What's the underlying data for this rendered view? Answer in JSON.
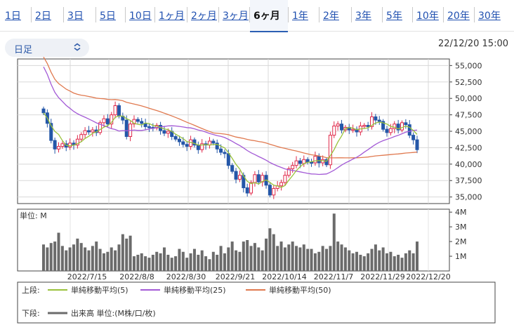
{
  "tabs": [
    {
      "label": "1日"
    },
    {
      "label": "2日"
    },
    {
      "label": "3日"
    },
    {
      "label": "5日"
    },
    {
      "label": "10日"
    },
    {
      "label": "1ヶ月"
    },
    {
      "label": "2ヶ月"
    },
    {
      "label": "3ヶ月"
    },
    {
      "label": "6ヶ月"
    },
    {
      "label": "1年"
    },
    {
      "label": "2年"
    },
    {
      "label": "3年"
    },
    {
      "label": "5年"
    },
    {
      "label": "10年"
    },
    {
      "label": "20年"
    },
    {
      "label": "30年"
    }
  ],
  "active_tab": "6ヶ月",
  "interval_select": {
    "value": "日足"
  },
  "timestamp": "22/12/20 15:00",
  "colors": {
    "up": "#e0294a",
    "down": "#2457a8",
    "ma5": "#9ac23c",
    "ma25": "#a35ad6",
    "ma50": "#e0794f",
    "volume": "#6b6b6b"
  },
  "chart_data": {
    "type": "candlestick",
    "price_axis": {
      "ticks": [
        "55,000",
        "52,500",
        "50,000",
        "47,500",
        "45,000",
        "42,500",
        "40,000",
        "37,500",
        "35,000"
      ],
      "ylim": [
        34000,
        56000
      ]
    },
    "volume_axis": {
      "unit_label": "単位: M",
      "ticks": [
        "4M",
        "3M",
        "2M",
        "1M"
      ],
      "ylim": [
        0,
        4.2
      ]
    },
    "x_labels": [
      "2022/7/15",
      "2022/8/8",
      "2022/8/30",
      "2022/9/21",
      "2022/10/14",
      "2022/11/7",
      "2022/11/29",
      "2022/12/20"
    ],
    "close": [
      47800,
      46200,
      43600,
      42300,
      42700,
      43100,
      42600,
      43200,
      42900,
      43800,
      44500,
      45100,
      44900,
      45200,
      44800,
      46300,
      46900,
      46100,
      47500,
      48900,
      47300,
      46700,
      44200,
      46100,
      46800,
      46500,
      46200,
      45700,
      45600,
      45500,
      45900,
      45100,
      44700,
      45000,
      44200,
      43800,
      43400,
      43000,
      42700,
      43700,
      42900,
      42200,
      43100,
      42900,
      43500,
      43200,
      42300,
      41800,
      41600,
      39800,
      38900,
      37700,
      38300,
      36400,
      35600,
      37200,
      38400,
      37300,
      38300,
      36800,
      35300,
      36300,
      36700,
      37200,
      38300,
      39300,
      39800,
      40500,
      40100,
      40700,
      40300,
      40200,
      41200,
      40200,
      40700,
      39900,
      44400,
      45800,
      46100,
      45200,
      45600,
      45200,
      45300,
      44900,
      45800,
      45900,
      45700,
      47200,
      46700,
      46500,
      45300,
      44800,
      45400,
      46100,
      45200,
      46300,
      46000,
      44400,
      43700,
      42200
    ],
    "volume": [
      1.8,
      1.6,
      1.9,
      2.0,
      2.6,
      1.7,
      1.4,
      1.6,
      1.8,
      2.2,
      1.9,
      1.6,
      1.4,
      1.7,
      2.0,
      1.5,
      1.2,
      1.3,
      1.6,
      1.4,
      1.8,
      2.5,
      2.2,
      2.4,
      1.0,
      1.1,
      1.2,
      1.0,
      0.9,
      1.1,
      1.3,
      1.2,
      1.6,
      1.1,
      0.9,
      1.0,
      1.5,
      1.3,
      0.9,
      1.2,
      1.5,
      1.1,
      1.4,
      1.0,
      0.8,
      1.3,
      1.1,
      1.7,
      1.2,
      1.6,
      2.0,
      1.4,
      1.3,
      2.0,
      2.1,
      1.7,
      1.9,
      1.6,
      1.4,
      2.2,
      2.9,
      2.5,
      1.7,
      2.0,
      1.6,
      1.8,
      2.0,
      1.7,
      1.6,
      1.8,
      1.5,
      1.5,
      1.2,
      1.3,
      1.7,
      1.5,
      1.7,
      3.9,
      2.0,
      1.8,
      1.6,
      1.4,
      1.2,
      1.3,
      1.1,
      1.0,
      1.2,
      1.5,
      1.8,
      1.4,
      1.6,
      1.2,
      1.3,
      1.0,
      1.1,
      0.9,
      1.2,
      1.4,
      1.2,
      2.0
    ]
  },
  "legend": {
    "upper_label": "上段:",
    "lower_label": "下段:",
    "items": [
      {
        "name": "単純移動平均(5)",
        "color": "#9ac23c"
      },
      {
        "name": "単純移動平均(25)",
        "color": "#a35ad6"
      },
      {
        "name": "単純移動平均(50)",
        "color": "#e0794f"
      }
    ],
    "volume_item": {
      "name": "出来高 単位:(M株/口/枚)",
      "color": "#6b6b6b"
    }
  }
}
